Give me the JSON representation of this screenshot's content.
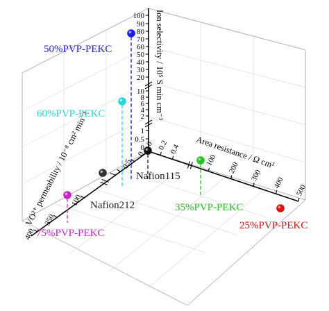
{
  "chart_data": {
    "type": "scatter",
    "title": "",
    "axes": {
      "z": {
        "label": "Ion selectivity / 10⁵ S min cm⁻³",
        "ticks": [
          "0",
          "0.5",
          "1",
          "2",
          "4",
          "6",
          "8",
          "10",
          "20",
          "30",
          "40",
          "50",
          "60",
          "70",
          "80",
          "90",
          "100"
        ],
        "range": [
          0,
          100
        ],
        "scale": "broken"
      },
      "x": {
        "label": "Area resistance / Ω cm²",
        "ticks": [
          "0",
          "0.2",
          "0.4",
          "100",
          "200",
          "300",
          "400",
          "500"
        ],
        "range": [
          0,
          500
        ],
        "scale": "broken"
      },
      "y": {
        "label": "VO²⁺ permeability / 10⁻⁸ cm² min⁻¹",
        "ticks": [
          "0",
          "0.5",
          "1",
          "100",
          "350",
          "400"
        ],
        "range": [
          0,
          400
        ],
        "scale": "broken"
      }
    },
    "series": [
      {
        "name": "Nafion115",
        "x": 0.45,
        "y": 0.15,
        "z": 0.2,
        "color": "#111111"
      },
      {
        "name": "Nafion212",
        "x": 0.25,
        "y": 0.8,
        "z": 0.05,
        "color": "#333333"
      },
      {
        "name": "25%PVP-PEKC",
        "x": 500,
        "y": 0.1,
        "z": 0.05,
        "color": "#e01010"
      },
      {
        "name": "35%PVP-PEKC",
        "x": 50,
        "y": 0.15,
        "z": 0.1,
        "color": "#22c51e"
      },
      {
        "name": "50%PVP-PEKC",
        "x": 0.1,
        "y": 0.2,
        "z": 80,
        "color": "#1a1aff"
      },
      {
        "name": "60%PVP-PEKC",
        "x": 0.1,
        "y": 0.3,
        "z": 6,
        "color": "#22d8d8"
      },
      {
        "name": "75%PVP-PEKC",
        "x": 0.1,
        "y": 400,
        "z": 0.05,
        "color": "#cc22cc"
      }
    ],
    "grid": true,
    "legend": "none"
  }
}
